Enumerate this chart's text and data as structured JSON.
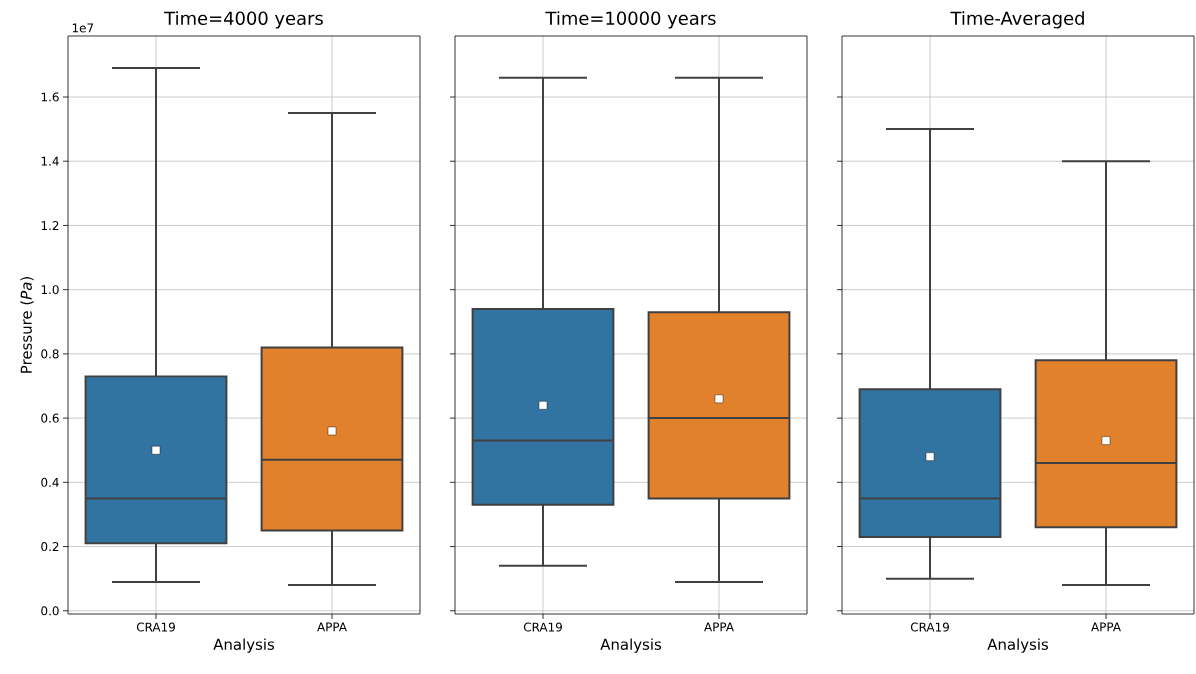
{
  "chart_data": [
    {
      "type": "box",
      "title": "Time=4000 years",
      "xlabel": "Analysis",
      "ylabel": "Pressure (*Pa*)",
      "annotations": [
        "1e7"
      ],
      "categories": [
        "CRA19",
        "APPA"
      ],
      "colors": [
        "#3274a1",
        "#e1812c"
      ],
      "boxes": [
        {
          "low": 0.09,
          "q1": 0.21,
          "median": 0.35,
          "q3": 0.73,
          "high": 1.69,
          "mean": 0.5
        },
        {
          "low": 0.08,
          "q1": 0.25,
          "median": 0.47,
          "q3": 0.82,
          "high": 1.55,
          "mean": 0.56
        }
      ],
      "ylim": [
        -0.01,
        1.79
      ],
      "yticks": [
        {
          "value": 0,
          "label": "0.0"
        },
        0.2,
        0.4,
        0.6,
        0.8,
        {
          "value": 1,
          "label": "1.0"
        },
        1.2,
        1.4,
        1.6
      ],
      "grid": true
    },
    {
      "type": "box",
      "title": "Time=10000 years",
      "xlabel": "Analysis",
      "categories": [
        "CRA19",
        "APPA"
      ],
      "colors": [
        "#3274a1",
        "#e1812c"
      ],
      "boxes": [
        {
          "low": 0.14,
          "q1": 0.33,
          "median": 0.53,
          "q3": 0.94,
          "high": 1.66,
          "mean": 0.64
        },
        {
          "low": 0.09,
          "q1": 0.35,
          "median": 0.6,
          "q3": 0.93,
          "high": 1.66,
          "mean": 0.66
        }
      ],
      "ylim": [
        -0.01,
        1.79
      ],
      "yticks": [
        0,
        0.2,
        0.4,
        0.6,
        0.8,
        1,
        1.2,
        1.4,
        1.6
      ],
      "grid": true,
      "tick_labels": "x"
    },
    {
      "type": "box",
      "title": "Time-Averaged",
      "xlabel": "Analysis",
      "categories": [
        "CRA19",
        "APPA"
      ],
      "colors": [
        "#3274a1",
        "#e1812c"
      ],
      "boxes": [
        {
          "low": 0.1,
          "q1": 0.23,
          "median": 0.35,
          "q3": 0.69,
          "high": 1.5,
          "mean": 0.48
        },
        {
          "low": 0.08,
          "q1": 0.26,
          "median": 0.46,
          "q3": 0.78,
          "high": 1.4,
          "mean": 0.53
        }
      ],
      "ylim": [
        -0.01,
        1.79
      ],
      "yticks": [
        0,
        0.2,
        0.4,
        0.6,
        0.8,
        1,
        1.2,
        1.4,
        1.6
      ],
      "grid": true,
      "tick_labels": "x"
    }
  ]
}
